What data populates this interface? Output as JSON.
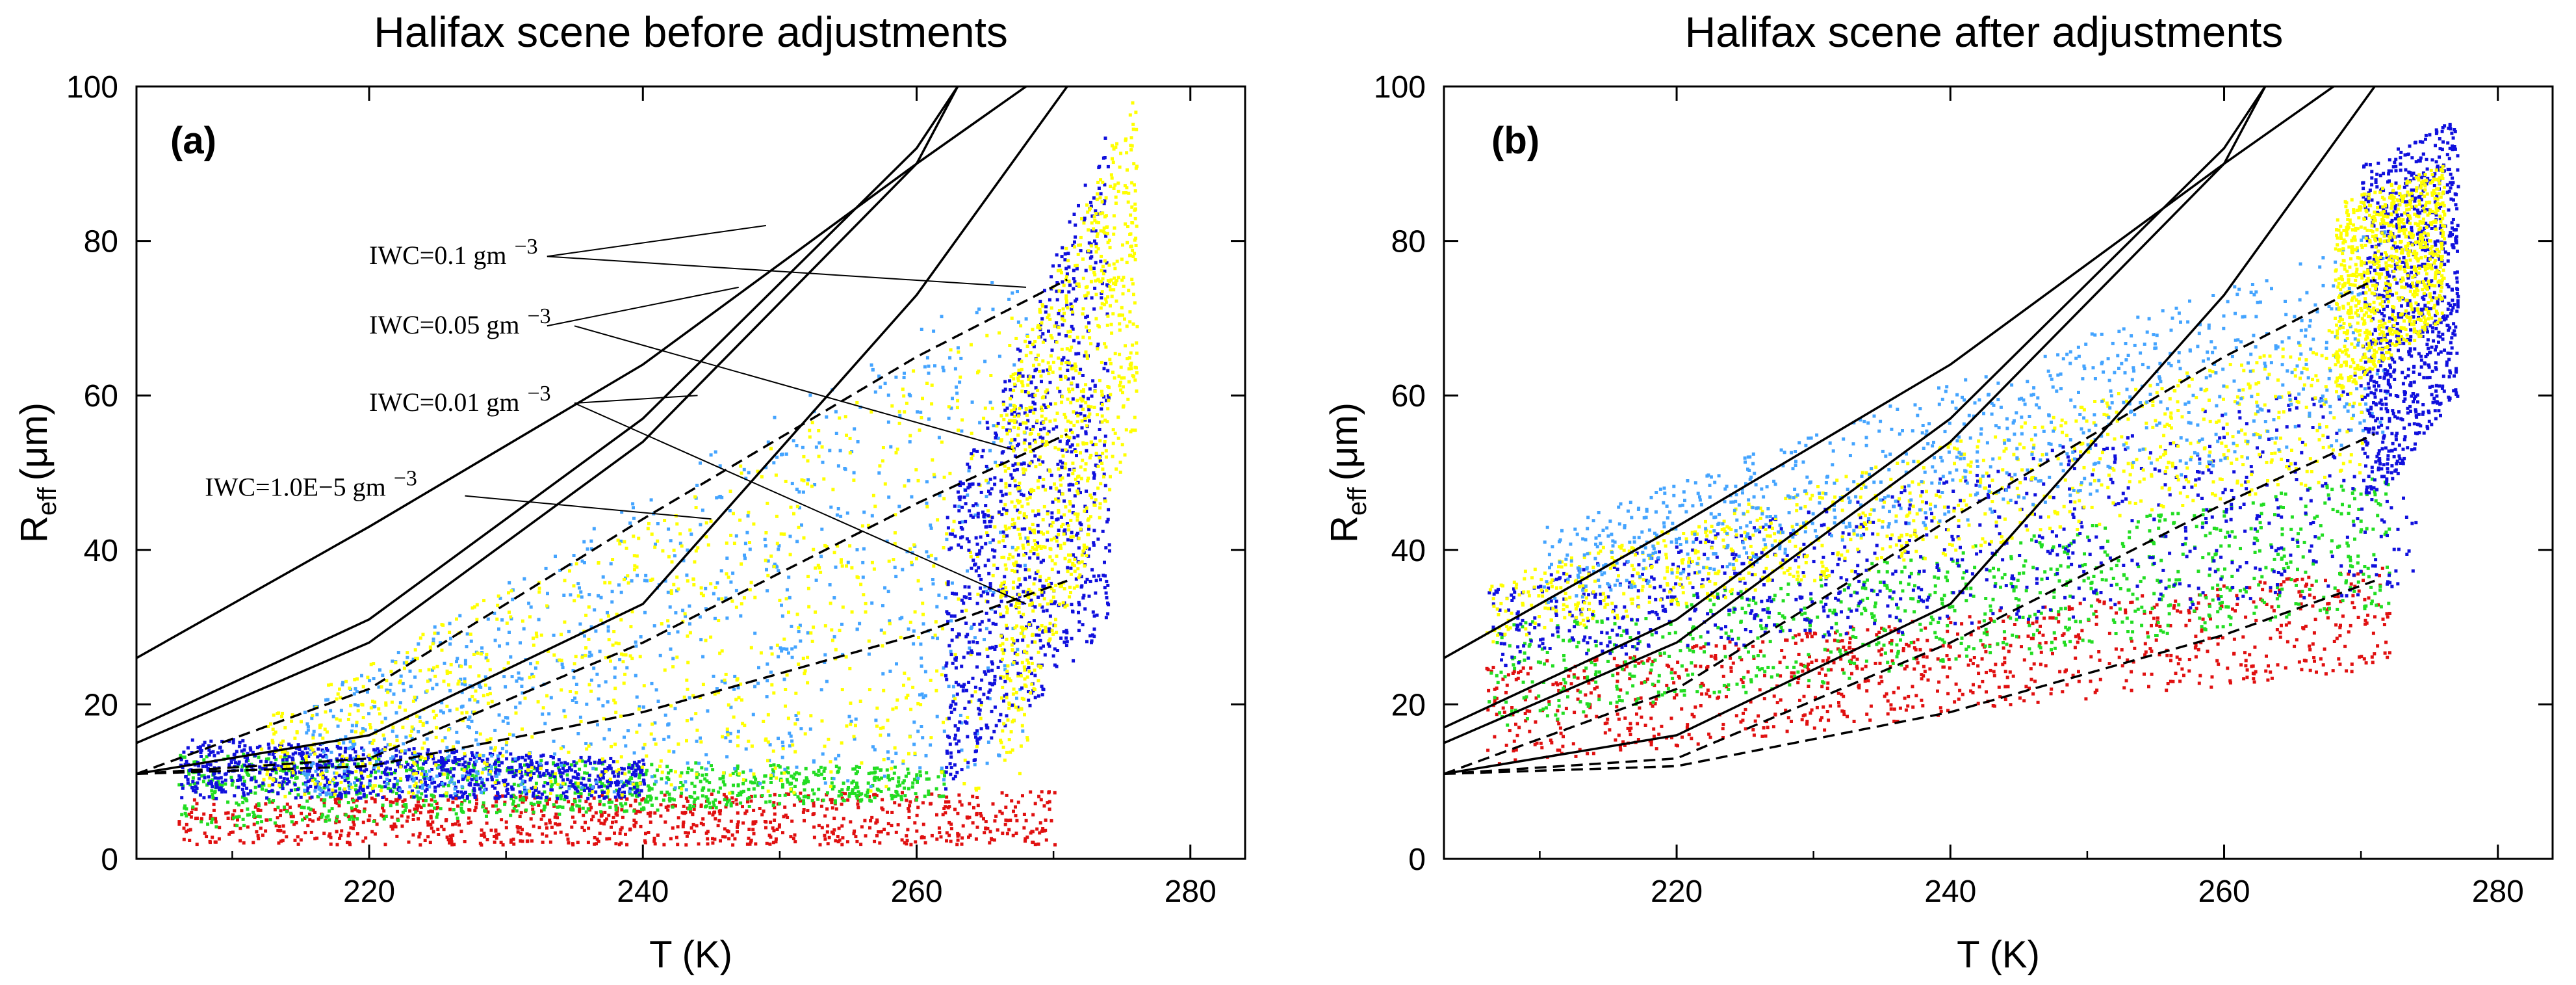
{
  "chart_data": [
    {
      "type": "scatter",
      "panel_label": "(a)",
      "title": "Halifax scene before adjustments",
      "xlabel": "T (K)",
      "ylabel_main": "R",
      "ylabel_sub": "eff",
      "ylabel_unit": "(μm)",
      "xlim": [
        203,
        284
      ],
      "ylim": [
        0,
        100
      ],
      "xticks": [
        220,
        240,
        260,
        280
      ],
      "yticks": [
        0,
        20,
        40,
        60,
        80,
        100
      ],
      "series_colors": [
        "#e01010",
        "#22dd22",
        "#1010dd",
        "#44a4ff",
        "#ffff00"
      ],
      "scatter_clusters": [
        {
          "color": "#e01010",
          "x": [
            206,
            270
          ],
          "y_low": [
            2,
            2
          ],
          "y_high": [
            8,
            9
          ]
        },
        {
          "color": "#22dd22",
          "x": [
            206,
            262
          ],
          "y_low": [
            4,
            8
          ],
          "y_high": [
            14,
            12
          ]
        },
        {
          "color": "#1010dd",
          "x": [
            206,
            240
          ],
          "y_low": [
            8,
            8
          ],
          "y_high": [
            16,
            13
          ]
        },
        {
          "color": "#44a4ff",
          "x": [
            215,
            268
          ],
          "y_low": [
            8,
            10
          ],
          "y_high": [
            20,
            78
          ]
        },
        {
          "color": "#ffff00",
          "x": [
            212,
            268
          ],
          "y_low": [
            8,
            9
          ],
          "y_high": [
            18,
            72
          ]
        },
        {
          "color": "#1010dd",
          "x": [
            262,
            274
          ],
          "y_low": [
            9,
            30
          ],
          "y_high": [
            45,
            95
          ]
        },
        {
          "color": "#ffff00",
          "x": [
            266,
            276
          ],
          "y_low": [
            10,
            55
          ],
          "y_high": [
            60,
            100
          ]
        }
      ],
      "curves": [
        {
          "style": "solid",
          "points": [
            [
              203,
              26
            ],
            [
              220,
              43
            ],
            [
              240,
              64
            ],
            [
              260,
              90
            ],
            [
              268,
              100
            ]
          ]
        },
        {
          "style": "solid",
          "points": [
            [
              203,
              17
            ],
            [
              220,
              31
            ],
            [
              240,
              57
            ],
            [
              260,
              92
            ],
            [
              263,
              100
            ]
          ]
        },
        {
          "style": "solid",
          "points": [
            [
              203,
              15
            ],
            [
              220,
              28
            ],
            [
              240,
              54
            ],
            [
              260,
              90
            ],
            [
              263,
              100
            ]
          ]
        },
        {
          "style": "solid",
          "points": [
            [
              203,
              11
            ],
            [
              220,
              16
            ],
            [
              240,
              33
            ],
            [
              260,
              73
            ],
            [
              271,
              100
            ]
          ]
        },
        {
          "style": "dashed",
          "points": [
            [
              203,
              11
            ],
            [
              220,
              22
            ],
            [
              240,
              44
            ],
            [
              260,
              65
            ],
            [
              271,
              75
            ]
          ]
        },
        {
          "style": "dashed",
          "points": [
            [
              203,
              11
            ],
            [
              220,
              13
            ],
            [
              240,
              28
            ],
            [
              260,
              46
            ],
            [
              271,
              55
            ]
          ]
        },
        {
          "style": "dashed",
          "points": [
            [
              203,
              11
            ],
            [
              220,
              12
            ],
            [
              240,
              19
            ],
            [
              260,
              29
            ],
            [
              271,
              36
            ]
          ]
        }
      ],
      "annotations": [
        {
          "text": "IWC=0.1 gm",
          "sup": "−3",
          "x": 220,
          "y": 77,
          "leaders": [
            [
              [
                233,
                78
              ],
              [
                249,
                82
              ]
            ],
            [
              [
                233,
                78
              ],
              [
                268,
                74
              ]
            ]
          ]
        },
        {
          "text": "IWC=0.05 gm",
          "sup": "−3",
          "x": 220,
          "y": 68,
          "leaders": [
            [
              [
                233,
                69
              ],
              [
                247,
                74
              ]
            ],
            [
              [
                235,
                69
              ],
              [
                267,
                53
              ]
            ]
          ]
        },
        {
          "text": "IWC=0.01 gm",
          "sup": "−3",
          "x": 220,
          "y": 58,
          "leaders": [
            [
              [
                235,
                59
              ],
              [
                244,
                60
              ]
            ],
            [
              [
                235,
                59
              ],
              [
                268,
                33
              ]
            ]
          ]
        },
        {
          "text": "IWC=1.0E−5 gm",
          "sup": "−3",
          "x": 208,
          "y": 47,
          "leaders": [
            [
              [
                227,
                47
              ],
              [
                245,
                44
              ]
            ]
          ]
        }
      ]
    },
    {
      "type": "scatter",
      "panel_label": "(b)",
      "title": "Halifax scene after adjustments",
      "xlabel": "T (K)",
      "ylabel_main": "R",
      "ylabel_sub": "eff",
      "ylabel_unit": "(μm)",
      "xlim": [
        203,
        284
      ],
      "ylim": [
        0,
        100
      ],
      "xticks": [
        220,
        240,
        260,
        280
      ],
      "yticks": [
        0,
        20,
        40,
        60,
        80,
        100
      ],
      "series_colors": [
        "#e01010",
        "#22dd22",
        "#1010dd",
        "#44a4ff",
        "#ffff00"
      ],
      "scatter_clusters": [
        {
          "color": "#e01010",
          "x": [
            206,
            272
          ],
          "y_low": [
            12,
            25
          ],
          "y_high": [
            25,
            38
          ]
        },
        {
          "color": "#22dd22",
          "x": [
            206,
            272
          ],
          "y_low": [
            17,
            33
          ],
          "y_high": [
            30,
            50
          ]
        },
        {
          "color": "#1010dd",
          "x": [
            206,
            274
          ],
          "y_low": [
            25,
            35
          ],
          "y_high": [
            35,
            65
          ]
        },
        {
          "color": "#ffff00",
          "x": [
            206,
            270
          ],
          "y_low": [
            28,
            50
          ],
          "y_high": [
            36,
            70
          ]
        },
        {
          "color": "#44a4ff",
          "x": [
            210,
            272
          ],
          "y_low": [
            33,
            55
          ],
          "y_high": [
            43,
            82
          ]
        },
        {
          "color": "#1010dd",
          "x": [
            270,
            277
          ],
          "y_low": [
            45,
            60
          ],
          "y_high": [
            90,
            96
          ]
        },
        {
          "color": "#ffff00",
          "x": [
            268,
            276
          ],
          "y_low": [
            60,
            70
          ],
          "y_high": [
            85,
            90
          ]
        }
      ],
      "curves": [
        {
          "style": "solid",
          "points": [
            [
              203,
              26
            ],
            [
              220,
              43
            ],
            [
              240,
              64
            ],
            [
              260,
              90
            ],
            [
              268,
              100
            ]
          ]
        },
        {
          "style": "solid",
          "points": [
            [
              203,
              17
            ],
            [
              220,
              31
            ],
            [
              240,
              57
            ],
            [
              260,
              92
            ],
            [
              263,
              100
            ]
          ]
        },
        {
          "style": "solid",
          "points": [
            [
              203,
              15
            ],
            [
              220,
              28
            ],
            [
              240,
              54
            ],
            [
              260,
              90
            ],
            [
              263,
              100
            ]
          ]
        },
        {
          "style": "solid",
          "points": [
            [
              203,
              11
            ],
            [
              220,
              16
            ],
            [
              240,
              33
            ],
            [
              260,
              73
            ],
            [
              271,
              100
            ]
          ]
        },
        {
          "style": "dashed",
          "points": [
            [
              203,
              11
            ],
            [
              220,
              22
            ],
            [
              240,
              44
            ],
            [
              260,
              65
            ],
            [
              271,
              75
            ]
          ]
        },
        {
          "style": "dashed",
          "points": [
            [
              203,
              11
            ],
            [
              220,
              13
            ],
            [
              240,
              28
            ],
            [
              260,
              46
            ],
            [
              271,
              55
            ]
          ]
        },
        {
          "style": "dashed",
          "points": [
            [
              203,
              11
            ],
            [
              220,
              12
            ],
            [
              240,
              19
            ],
            [
              260,
              29
            ],
            [
              271,
              36
            ]
          ]
        }
      ],
      "annotations": []
    }
  ]
}
